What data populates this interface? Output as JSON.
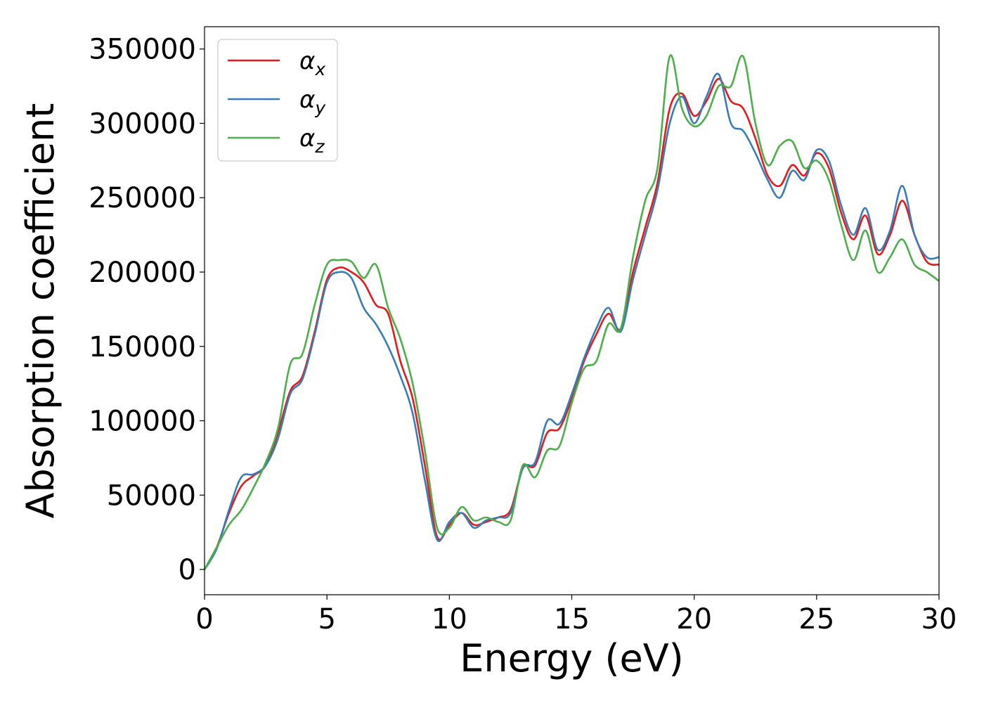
{
  "chart_data": {
    "type": "line",
    "xlabel": "Energy (eV)",
    "ylabel": "Absorption coefficient",
    "xlim": [
      0,
      30
    ],
    "ylim": [
      -17000,
      365000
    ],
    "x_ticks": [
      0,
      5,
      10,
      15,
      20,
      25,
      30
    ],
    "y_ticks": [
      0,
      50000,
      100000,
      150000,
      200000,
      250000,
      300000,
      350000
    ],
    "grid": false,
    "legend_position": "top-left",
    "series": [
      {
        "name": "α",
        "subscript": "x",
        "color": "#e41a1c",
        "x": [
          0,
          0.5,
          1,
          1.5,
          2,
          2.5,
          3,
          3.5,
          4,
          4.5,
          5,
          5.5,
          6,
          6.5,
          7,
          7.5,
          8,
          8.5,
          9,
          9.5,
          10,
          10.5,
          11,
          11.5,
          12,
          12.5,
          13,
          13.5,
          14,
          14.5,
          15,
          15.5,
          16,
          16.5,
          17,
          17.5,
          18,
          18.5,
          19,
          19.5,
          20,
          20.5,
          21,
          21.5,
          22,
          22.5,
          23,
          23.5,
          24,
          24.5,
          25,
          25.5,
          26,
          26.5,
          27,
          27.5,
          28,
          28.5,
          29,
          29.5,
          30
        ],
        "values": [
          0,
          15000,
          38000,
          56000,
          63000,
          70000,
          92000,
          120000,
          130000,
          160000,
          195000,
          203000,
          200000,
          193000,
          178000,
          172000,
          140000,
          115000,
          70000,
          22000,
          30000,
          38000,
          30000,
          32000,
          35000,
          40000,
          68000,
          70000,
          92000,
          95000,
          115000,
          140000,
          158000,
          172000,
          162000,
          200000,
          230000,
          260000,
          310000,
          320000,
          305000,
          315000,
          330000,
          315000,
          310000,
          290000,
          265000,
          258000,
          272000,
          265000,
          280000,
          270000,
          240000,
          222000,
          238000,
          212000,
          225000,
          248000,
          225000,
          207000,
          205000
        ]
      },
      {
        "name": "α",
        "subscript": "y",
        "color": "#377eb8",
        "x": [
          0,
          0.5,
          1,
          1.5,
          2,
          2.5,
          3,
          3.5,
          4,
          4.5,
          5,
          5.5,
          6,
          6.5,
          7,
          7.5,
          8,
          8.5,
          9,
          9.5,
          10,
          10.5,
          11,
          11.5,
          12,
          12.5,
          13,
          13.5,
          14,
          14.5,
          15,
          15.5,
          16,
          16.5,
          17,
          17.5,
          18,
          18.5,
          19,
          19.5,
          20,
          20.5,
          21,
          21.5,
          22,
          22.5,
          23,
          23.5,
          24,
          24.5,
          25,
          25.5,
          26,
          26.5,
          27,
          27.5,
          28,
          28.5,
          29,
          29.5,
          30
        ],
        "values": [
          0,
          14000,
          40000,
          62000,
          64000,
          70000,
          88000,
          118000,
          128000,
          158000,
          193000,
          200000,
          196000,
          176000,
          165000,
          150000,
          130000,
          105000,
          60000,
          20000,
          32000,
          38000,
          28000,
          33000,
          35000,
          38000,
          68000,
          72000,
          100000,
          98000,
          118000,
          142000,
          162000,
          176000,
          160000,
          195000,
          225000,
          255000,
          300000,
          318000,
          300000,
          318000,
          333000,
          300000,
          295000,
          280000,
          262000,
          250000,
          268000,
          262000,
          282000,
          275000,
          245000,
          225000,
          243000,
          215000,
          228000,
          258000,
          225000,
          210000,
          210000
        ]
      },
      {
        "name": "α",
        "subscript": "z",
        "color": "#4daf4a",
        "x": [
          0,
          0.5,
          1,
          1.5,
          2,
          2.5,
          3,
          3.5,
          4,
          4.5,
          5,
          5.5,
          6,
          6.5,
          7,
          7.5,
          8,
          8.5,
          9,
          9.5,
          10,
          10.5,
          11,
          11.5,
          12,
          12.5,
          13,
          13.5,
          14,
          14.5,
          15,
          15.5,
          16,
          16.5,
          17,
          17.5,
          18,
          18.5,
          19,
          19.5,
          20,
          20.5,
          21,
          21.5,
          22,
          22.5,
          23,
          23.5,
          24,
          24.5,
          25,
          25.5,
          26,
          26.5,
          27,
          27.5,
          28,
          28.5,
          29,
          29.5,
          30
        ],
        "values": [
          0,
          15000,
          30000,
          40000,
          55000,
          72000,
          95000,
          138000,
          145000,
          178000,
          205000,
          208000,
          207000,
          196000,
          205000,
          176000,
          155000,
          125000,
          80000,
          28000,
          28000,
          42000,
          33000,
          35000,
          32000,
          33000,
          70000,
          62000,
          80000,
          83000,
          112000,
          135000,
          140000,
          165000,
          162000,
          210000,
          248000,
          270000,
          345000,
          310000,
          298000,
          305000,
          325000,
          325000,
          345000,
          300000,
          272000,
          285000,
          288000,
          270000,
          275000,
          262000,
          232000,
          208000,
          228000,
          200000,
          210000,
          222000,
          205000,
          200000,
          194000
        ]
      }
    ]
  }
}
